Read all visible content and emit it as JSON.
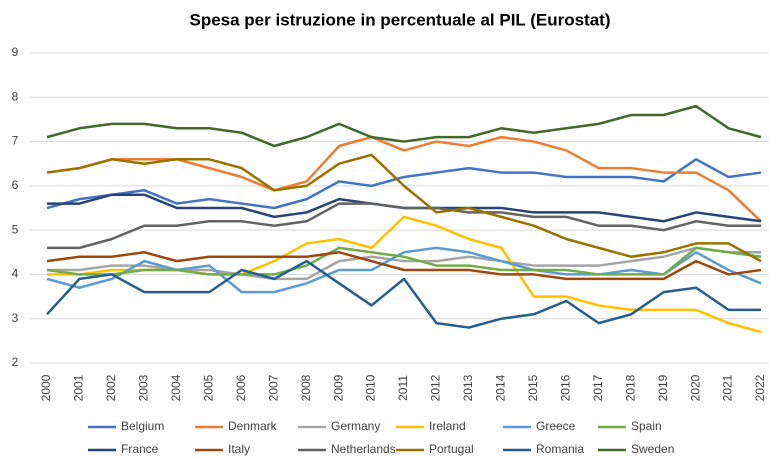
{
  "chart_data": {
    "type": "line",
    "title": "Spesa per istruzione in percentuale al PIL (Eurostat)",
    "categories": [
      "2000",
      "2001",
      "2002",
      "2003",
      "2004",
      "2005",
      "2006",
      "2007",
      "2008",
      "2009",
      "2010",
      "2011",
      "2012",
      "2013",
      "2014",
      "2015",
      "2016",
      "2017",
      "2018",
      "2019",
      "2020",
      "2021",
      "2022"
    ],
    "ylim": [
      2,
      9
    ],
    "yticks": [
      2,
      3,
      4,
      5,
      6,
      7,
      8,
      9
    ],
    "grid": true,
    "legend": "bottom",
    "series": [
      {
        "name": "Belgium",
        "color": "#4472c4",
        "values": [
          5.5,
          5.7,
          5.8,
          5.9,
          5.6,
          5.7,
          5.6,
          5.5,
          5.7,
          6.1,
          6.0,
          6.2,
          6.3,
          6.4,
          6.3,
          6.3,
          6.2,
          6.2,
          6.2,
          6.1,
          6.6,
          6.2,
          6.3
        ]
      },
      {
        "name": "Denmark",
        "color": "#ed7d31",
        "values": [
          6.3,
          6.4,
          6.6,
          6.6,
          6.6,
          6.4,
          6.2,
          5.9,
          6.1,
          6.9,
          7.1,
          6.8,
          7.0,
          6.9,
          7.1,
          7.0,
          6.8,
          6.4,
          6.4,
          6.3,
          6.3,
          5.9,
          5.2
        ]
      },
      {
        "name": "Germany",
        "color": "#a5a5a5",
        "values": [
          4.1,
          4.1,
          4.2,
          4.2,
          4.1,
          4.1,
          4.0,
          3.9,
          3.9,
          4.3,
          4.4,
          4.3,
          4.3,
          4.4,
          4.3,
          4.2,
          4.2,
          4.2,
          4.3,
          4.4,
          4.6,
          4.5,
          4.5
        ]
      },
      {
        "name": "Ireland",
        "color": "#ffc000",
        "values": [
          4.0,
          4.0,
          4.1,
          4.1,
          4.1,
          4.0,
          4.0,
          4.3,
          4.7,
          4.8,
          4.6,
          5.3,
          5.1,
          4.8,
          4.6,
          3.5,
          3.5,
          3.3,
          3.2,
          3.2,
          3.2,
          2.9,
          2.7
        ]
      },
      {
        "name": "Greece",
        "color": "#5b9bd5",
        "values": [
          3.9,
          3.7,
          3.9,
          4.3,
          4.1,
          4.2,
          3.6,
          3.6,
          3.8,
          4.1,
          4.1,
          4.5,
          4.6,
          4.5,
          4.3,
          4.1,
          4.0,
          4.0,
          4.1,
          4.0,
          4.5,
          4.1,
          3.8
        ]
      },
      {
        "name": "Spain",
        "color": "#70ad47",
        "values": [
          4.1,
          4.0,
          4.0,
          4.1,
          4.1,
          4.0,
          4.0,
          4.0,
          4.2,
          4.6,
          4.5,
          4.4,
          4.2,
          4.2,
          4.1,
          4.1,
          4.1,
          4.0,
          4.0,
          4.0,
          4.6,
          4.5,
          4.4
        ]
      },
      {
        "name": "France",
        "color": "#264478",
        "values": [
          5.6,
          5.6,
          5.8,
          5.8,
          5.5,
          5.5,
          5.5,
          5.3,
          5.4,
          5.7,
          5.6,
          5.5,
          5.5,
          5.5,
          5.5,
          5.4,
          5.4,
          5.4,
          5.3,
          5.2,
          5.4,
          5.3,
          5.2
        ]
      },
      {
        "name": "Italy",
        "color": "#9e480e",
        "values": [
          4.3,
          4.4,
          4.4,
          4.5,
          4.3,
          4.4,
          4.4,
          4.4,
          4.4,
          4.5,
          4.3,
          4.1,
          4.1,
          4.1,
          4.0,
          4.0,
          3.9,
          3.9,
          3.9,
          3.9,
          4.3,
          4.0,
          4.1
        ]
      },
      {
        "name": "Netherlands",
        "color": "#636363",
        "values": [
          4.6,
          4.6,
          4.8,
          5.1,
          5.1,
          5.2,
          5.2,
          5.1,
          5.2,
          5.6,
          5.6,
          5.5,
          5.5,
          5.4,
          5.4,
          5.3,
          5.3,
          5.1,
          5.1,
          5.0,
          5.2,
          5.1,
          5.1
        ]
      },
      {
        "name": "Portugal",
        "color": "#997300",
        "values": [
          6.3,
          6.4,
          6.6,
          6.5,
          6.6,
          6.6,
          6.4,
          5.9,
          6.0,
          6.5,
          6.7,
          6.0,
          5.4,
          5.5,
          5.3,
          5.1,
          4.8,
          4.6,
          4.4,
          4.5,
          4.7,
          4.7,
          4.3
        ]
      },
      {
        "name": "Romania",
        "color": "#255e91",
        "values": [
          3.1,
          3.9,
          4.0,
          3.6,
          3.6,
          3.6,
          4.1,
          3.9,
          4.3,
          3.8,
          3.3,
          3.9,
          2.9,
          2.8,
          3.0,
          3.1,
          3.4,
          2.9,
          3.1,
          3.6,
          3.7,
          3.2,
          3.2
        ]
      },
      {
        "name": "Sweden",
        "color": "#43682b",
        "values": [
          7.1,
          7.3,
          7.4,
          7.4,
          7.3,
          7.3,
          7.2,
          6.9,
          7.1,
          7.4,
          7.1,
          7.0,
          7.1,
          7.1,
          7.3,
          7.2,
          7.3,
          7.4,
          7.6,
          7.6,
          7.8,
          7.3,
          7.1
        ]
      }
    ]
  }
}
